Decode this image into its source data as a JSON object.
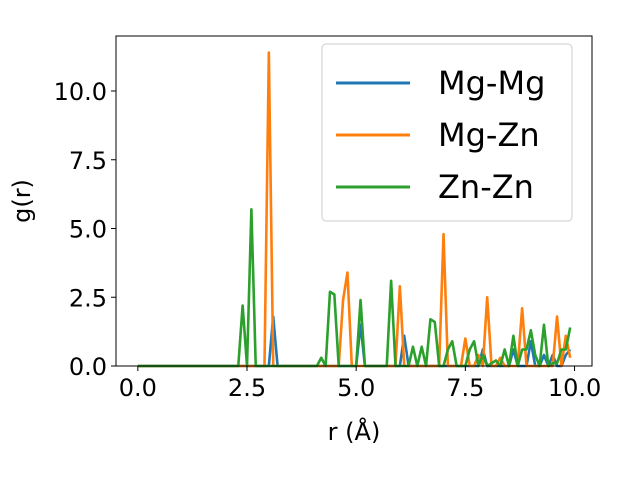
{
  "chart_data": {
    "type": "line",
    "xlabel": "r (Å)",
    "ylabel": "g(r)",
    "xlim": [
      -0.5,
      10.4
    ],
    "ylim": [
      0,
      12.0
    ],
    "xticks": [
      0.0,
      2.5,
      5.0,
      7.5,
      10.0
    ],
    "xtick_labels": [
      "0.0",
      "2.5",
      "5.0",
      "7.5",
      "10.0"
    ],
    "yticks": [
      0.0,
      2.5,
      5.0,
      7.5,
      10.0
    ],
    "ytick_labels": [
      "0.0",
      "2.5",
      "5.0",
      "7.5",
      "10.0"
    ],
    "grid": false,
    "legend": "top-right",
    "x": [
      0.0,
      0.1,
      0.2,
      0.3,
      0.4,
      0.5,
      0.6,
      0.7,
      0.8,
      0.9,
      1.0,
      1.1,
      1.2,
      1.3,
      1.4,
      1.5,
      1.6,
      1.7,
      1.8,
      1.9,
      2.0,
      2.1,
      2.2,
      2.3,
      2.4,
      2.5,
      2.6,
      2.7,
      2.8,
      2.9,
      3.0,
      3.1,
      3.2,
      3.3,
      3.4,
      3.5,
      3.6,
      3.7,
      3.8,
      3.9,
      4.0,
      4.1,
      4.2,
      4.3,
      4.4,
      4.5,
      4.6,
      4.7,
      4.8,
      4.9,
      5.0,
      5.1,
      5.2,
      5.3,
      5.4,
      5.5,
      5.6,
      5.7,
      5.8,
      5.9,
      6.0,
      6.1,
      6.2,
      6.3,
      6.4,
      6.5,
      6.6,
      6.7,
      6.8,
      6.9,
      7.0,
      7.1,
      7.2,
      7.3,
      7.4,
      7.5,
      7.6,
      7.7,
      7.8,
      7.9,
      8.0,
      8.1,
      8.2,
      8.3,
      8.4,
      8.5,
      8.6,
      8.7,
      8.8,
      8.9,
      9.0,
      9.1,
      9.2,
      9.3,
      9.4,
      9.5,
      9.6,
      9.7,
      9.8,
      9.9
    ],
    "series": [
      {
        "name": "Mg-Mg",
        "color": "#1f77b4",
        "values": [
          0,
          0,
          0,
          0,
          0,
          0,
          0,
          0,
          0,
          0,
          0,
          0,
          0,
          0,
          0,
          0,
          0,
          0,
          0,
          0,
          0,
          0,
          0,
          0,
          0,
          0,
          0,
          0,
          0,
          0,
          0,
          1.8,
          0,
          0,
          0,
          0,
          0,
          0,
          0,
          0,
          0,
          0,
          0,
          0,
          0,
          0,
          0,
          0,
          0,
          0,
          0,
          1.5,
          0,
          0,
          0,
          0,
          0,
          0,
          0,
          0,
          0,
          1.1,
          0,
          0,
          0,
          0,
          0,
          0,
          0,
          0,
          0,
          0,
          0,
          0,
          0,
          0,
          0,
          0,
          0,
          0.6,
          0,
          0,
          0,
          0,
          0,
          0,
          0.6,
          0,
          0,
          0,
          0.9,
          0,
          0,
          0.4,
          0,
          0.4,
          0,
          0,
          0.4,
          0.6
        ]
      },
      {
        "name": "Mg-Zn",
        "color": "#ff7f0e",
        "values": [
          0,
          0,
          0,
          0,
          0,
          0,
          0,
          0,
          0,
          0,
          0,
          0,
          0,
          0,
          0,
          0,
          0,
          0,
          0,
          0,
          0,
          0,
          0,
          0,
          0,
          0,
          0,
          0,
          0,
          0,
          11.4,
          0,
          0,
          0,
          0,
          0,
          0,
          0,
          0,
          0,
          0,
          0,
          0,
          0,
          0,
          0,
          0,
          2.4,
          3.4,
          0,
          0,
          0,
          0,
          0,
          0,
          0,
          0,
          0,
          0,
          0,
          2.9,
          0,
          0,
          0,
          0,
          0,
          0,
          0,
          0,
          0,
          4.8,
          0,
          0,
          0,
          0,
          1.0,
          0,
          0,
          0.4,
          0,
          2.5,
          0,
          0,
          0.3,
          0,
          0,
          0,
          0,
          2.1,
          0,
          0,
          0,
          0,
          0,
          0,
          0,
          1.8,
          0,
          1.1,
          0.3
        ]
      },
      {
        "name": "Zn-Zn",
        "color": "#2ca02c",
        "values": [
          0,
          0,
          0,
          0,
          0,
          0,
          0,
          0,
          0,
          0,
          0,
          0,
          0,
          0,
          0,
          0,
          0,
          0,
          0,
          0,
          0,
          0,
          0,
          0,
          2.2,
          0,
          5.7,
          0,
          0,
          0,
          0,
          0,
          0,
          0,
          0,
          0,
          0,
          0,
          0,
          0,
          0,
          0,
          0.3,
          0,
          2.7,
          2.6,
          0,
          0,
          0,
          0,
          0,
          2.4,
          0,
          0,
          0,
          0,
          0,
          0,
          3.1,
          0,
          0,
          0,
          0,
          0.7,
          0,
          0.7,
          0,
          1.7,
          1.6,
          0,
          0,
          0.6,
          0.9,
          0,
          0,
          0,
          0.6,
          0.9,
          0,
          0.4,
          0,
          0.1,
          0.2,
          0,
          0.6,
          0,
          1.1,
          0,
          0.6,
          0.6,
          1.3,
          0.4,
          0,
          1.5,
          0,
          0.1,
          0.1,
          0.6,
          0.6,
          1.4
        ]
      }
    ]
  }
}
